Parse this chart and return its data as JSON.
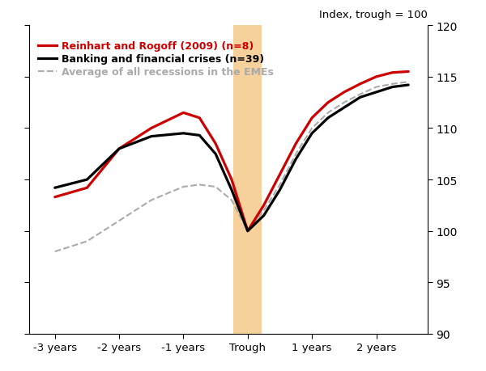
{
  "reinhart_rogoff": {
    "x": [
      -3,
      -2.5,
      -2,
      -1.5,
      -1,
      -0.75,
      -0.5,
      -0.25,
      0,
      0.25,
      0.5,
      0.75,
      1,
      1.25,
      1.5,
      1.75,
      2,
      2.25,
      2.5
    ],
    "y": [
      103.3,
      104.2,
      108.0,
      110.0,
      111.5,
      111.0,
      108.5,
      105.0,
      100.0,
      102.5,
      105.5,
      108.5,
      111.0,
      112.5,
      113.5,
      114.3,
      115.0,
      115.4,
      115.5
    ],
    "color": "#cc0000",
    "linewidth": 2.3,
    "label": "Reinhart and Rogoff (2009) (n=8)"
  },
  "banking_crises": {
    "x": [
      -3,
      -2.5,
      -2,
      -1.5,
      -1,
      -0.75,
      -0.5,
      -0.25,
      0,
      0.25,
      0.5,
      0.75,
      1,
      1.25,
      1.5,
      1.75,
      2,
      2.25,
      2.5
    ],
    "y": [
      104.2,
      105.0,
      108.0,
      109.2,
      109.5,
      109.3,
      107.5,
      104.0,
      100.0,
      101.5,
      104.0,
      107.0,
      109.5,
      111.0,
      112.0,
      113.0,
      113.5,
      114.0,
      114.2
    ],
    "color": "#000000",
    "linewidth": 2.3,
    "label": "Banking and financial crises (n=39)"
  },
  "average_emes": {
    "x": [
      -3,
      -2.5,
      -2,
      -1.5,
      -1,
      -0.75,
      -0.5,
      -0.25,
      0,
      0.25,
      0.5,
      0.75,
      1,
      1.25,
      1.5,
      1.75,
      2,
      2.25,
      2.5
    ],
    "y": [
      98.0,
      99.0,
      101.0,
      103.0,
      104.3,
      104.5,
      104.3,
      103.0,
      100.0,
      102.0,
      104.5,
      107.5,
      110.0,
      111.5,
      112.5,
      113.3,
      114.0,
      114.3,
      114.5
    ],
    "color": "#aaaaaa",
    "linewidth": 1.5,
    "linestyle": "--",
    "label": "Average of all recessions in the EMEs"
  },
  "shading": {
    "x_lo": -0.22,
    "x_hi": 0.22,
    "color": "#f5c98a",
    "alpha": 0.85
  },
  "ylim": [
    90,
    120
  ],
  "yticks": [
    90,
    95,
    100,
    105,
    110,
    115,
    120
  ],
  "xlim": [
    -3.4,
    2.8
  ],
  "xtick_positions": [
    -3,
    -2,
    -1,
    0,
    1,
    2
  ],
  "x_tick_labels": [
    "-3 years",
    "-2 years",
    "-1 years",
    "Trough",
    "1 years",
    "2 years"
  ],
  "top_label": "Index, trough = 100",
  "background_color": "#ffffff"
}
